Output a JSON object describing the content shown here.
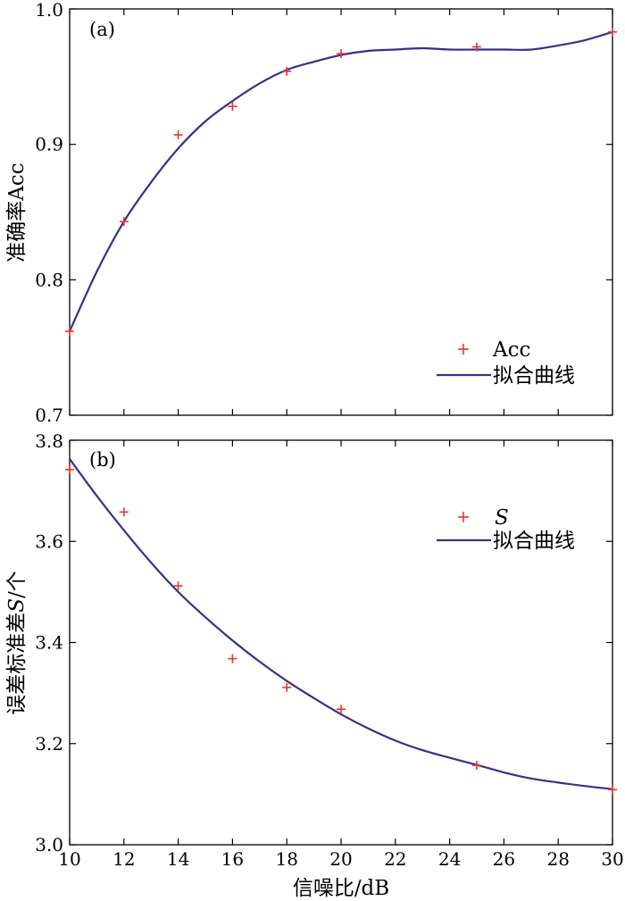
{
  "chart_data": [
    {
      "panel": "(a)",
      "type": "scatter+line",
      "ylabel": "准确率Acc",
      "xlim": [
        10,
        30
      ],
      "ylim": [
        0.7,
        1.0
      ],
      "x_ticks": [
        "10",
        "12",
        "14",
        "16",
        "18",
        "20",
        "22",
        "24",
        "26",
        "28",
        "30"
      ],
      "y_ticks": [
        "0.7",
        "0.8",
        "0.9",
        "1.0"
      ],
      "legend_position": "bottom-right",
      "series": [
        {
          "name": "Acc",
          "style": "markers",
          "marker": "+",
          "color": "#e8352b",
          "x": [
            10,
            12,
            14,
            16,
            18,
            20,
            25,
            30
          ],
          "y": [
            0.762,
            0.843,
            0.907,
            0.928,
            0.954,
            0.967,
            0.972,
            0.983
          ]
        },
        {
          "name": "拟合曲线",
          "style": "line",
          "color": "#3a2f8c",
          "x": [
            10,
            11,
            12,
            13,
            14,
            15,
            16,
            17,
            18,
            19,
            20,
            21,
            22,
            23,
            24,
            25,
            26,
            27,
            28,
            29,
            30
          ],
          "y": [
            0.762,
            0.806,
            0.843,
            0.872,
            0.897,
            0.917,
            0.932,
            0.945,
            0.955,
            0.961,
            0.966,
            0.969,
            0.97,
            0.971,
            0.97,
            0.97,
            0.97,
            0.97,
            0.973,
            0.977,
            0.983
          ]
        }
      ]
    },
    {
      "panel": "(b)",
      "type": "scatter+line",
      "ylabel": "误差标准差S/个",
      "xlabel": "信噪比/dB",
      "xlim": [
        10,
        30
      ],
      "ylim": [
        3.0,
        3.8
      ],
      "x_ticks": [
        "10",
        "12",
        "14",
        "16",
        "18",
        "20",
        "22",
        "24",
        "26",
        "28",
        "30"
      ],
      "y_ticks": [
        "3.0",
        "3.2",
        "3.4",
        "3.6",
        "3.8"
      ],
      "legend_position": "top-right",
      "series": [
        {
          "name": "S",
          "style": "markers",
          "marker": "+",
          "color": "#e8352b",
          "x": [
            10,
            12,
            14,
            16,
            18,
            20,
            25,
            30
          ],
          "y": [
            3.742,
            3.658,
            3.512,
            3.368,
            3.311,
            3.268,
            3.157,
            3.109
          ]
        },
        {
          "name": "拟合曲线",
          "style": "line",
          "color": "#3a2f8c",
          "x": [
            10,
            11,
            12,
            13,
            14,
            15,
            16,
            17,
            18,
            19,
            20,
            21,
            22,
            23,
            24,
            25,
            26,
            27,
            28,
            29,
            30
          ],
          "y": [
            3.763,
            3.69,
            3.622,
            3.558,
            3.5,
            3.45,
            3.404,
            3.362,
            3.324,
            3.29,
            3.258,
            3.23,
            3.206,
            3.187,
            3.172,
            3.158,
            3.143,
            3.131,
            3.123,
            3.116,
            3.11
          ]
        }
      ]
    }
  ]
}
